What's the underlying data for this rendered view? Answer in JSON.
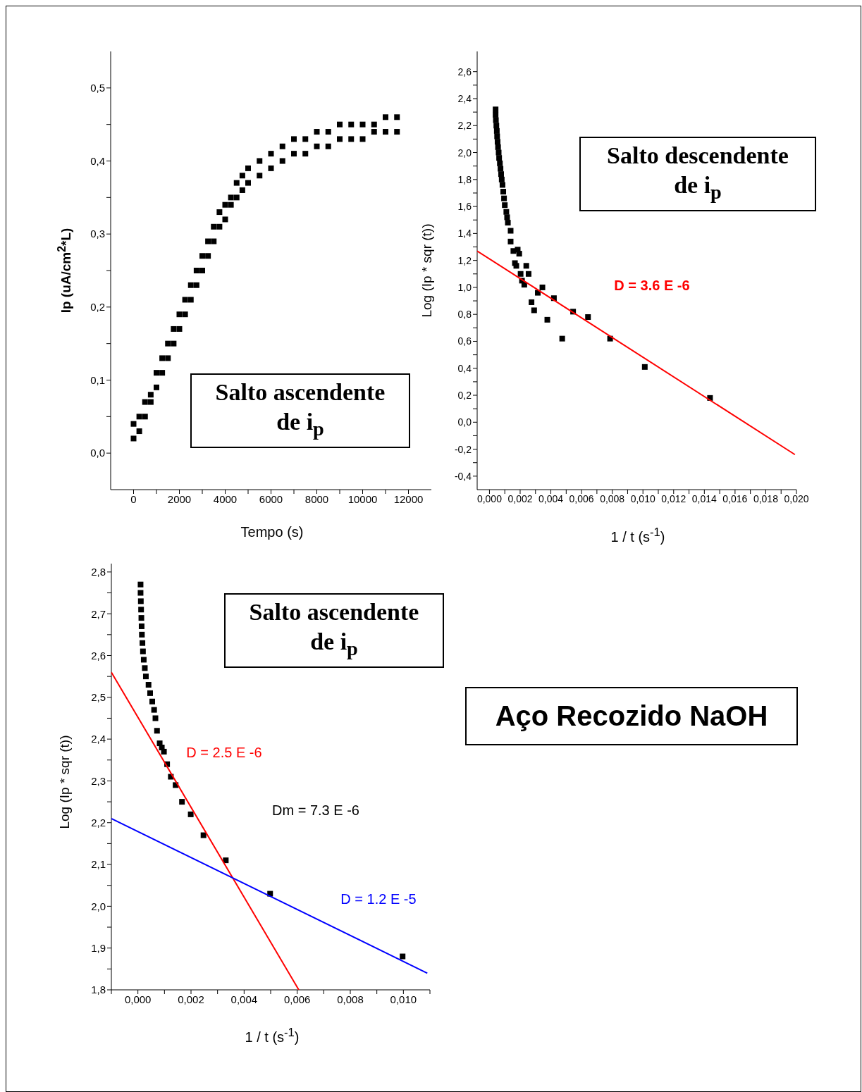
{
  "chart_data": [
    {
      "type": "scatter",
      "xlabel": "Tempo (s)",
      "ylabel": "Ip (uA/cm$^{2}$*L)",
      "marker": "square",
      "xlim": [
        -1000,
        13000
      ],
      "ylim": [
        -0.05,
        0.55
      ],
      "xticks": [
        0,
        {
          "value": 1000,
          "label": null
        },
        2000,
        {
          "value": 3000,
          "label": null
        },
        4000,
        {
          "value": 5000,
          "label": null
        },
        6000,
        {
          "value": 7000,
          "label": null
        },
        8000,
        {
          "value": 9000,
          "label": null
        },
        10000,
        {
          "value": 11000,
          "label": null
        },
        12000
      ],
      "yticks": [
        {
          "value": 0,
          "label": "0,0"
        },
        {
          "value": 0.05,
          "label": null
        },
        {
          "value": 0.1,
          "label": "0,1"
        },
        {
          "value": 0.15,
          "label": null
        },
        {
          "value": 0.2,
          "label": "0,2"
        },
        {
          "value": 0.25,
          "label": null
        },
        {
          "value": 0.3,
          "label": "0,3"
        },
        {
          "value": 0.35,
          "label": null
        },
        {
          "value": 0.4,
          "label": "0,4"
        },
        {
          "value": 0.45,
          "label": null
        },
        {
          "value": 0.5,
          "label": "0,5"
        }
      ],
      "annotations": [
        "Salto ascendente de i$_{p}$"
      ],
      "series": [
        {
          "type": "scatter",
          "color": "#000000",
          "x": [
            0,
            0,
            250,
            250,
            500,
            500,
            750,
            750,
            1000,
            1000,
            1250,
            1250,
            1500,
            1500,
            1750,
            1750,
            2000,
            2000,
            2250,
            2250,
            2500,
            2500,
            2750,
            2750,
            3000,
            3000,
            3250,
            3250,
            3500,
            3500,
            3750,
            3750,
            4000,
            4000,
            4250,
            4250,
            4500,
            4500,
            4750,
            4750,
            5000,
            5000,
            5500,
            5500,
            6000,
            6000,
            6500,
            6500,
            7000,
            7000,
            7500,
            7500,
            8000,
            8000,
            8500,
            8500,
            9000,
            9000,
            9500,
            9500,
            10000,
            10000,
            10500,
            10500,
            11000,
            11000,
            11500,
            11500
          ],
          "values": [
            0.02,
            0.04,
            0.03,
            0.05,
            0.05,
            0.07,
            0.07,
            0.08,
            0.09,
            0.11,
            0.11,
            0.13,
            0.13,
            0.15,
            0.15,
            0.17,
            0.17,
            0.19,
            0.19,
            0.21,
            0.21,
            0.23,
            0.23,
            0.25,
            0.25,
            0.27,
            0.27,
            0.29,
            0.29,
            0.31,
            0.31,
            0.33,
            0.32,
            0.34,
            0.34,
            0.35,
            0.35,
            0.37,
            0.36,
            0.38,
            0.37,
            0.39,
            0.38,
            0.4,
            0.39,
            0.41,
            0.4,
            0.42,
            0.41,
            0.43,
            0.41,
            0.43,
            0.42,
            0.44,
            0.42,
            0.44,
            0.43,
            0.45,
            0.43,
            0.45,
            0.43,
            0.45,
            0.44,
            0.45,
            0.44,
            0.46,
            0.44,
            0.46
          ]
        }
      ]
    },
    {
      "type": "scatter",
      "xlabel": "1 / t (s$^{-1}$)",
      "ylabel": "Log (Ip * sqr (t))",
      "marker": "square",
      "xlim": [
        -0.0008,
        0.02
      ],
      "ylim": [
        -0.5,
        2.75
      ],
      "xticks": [
        {
          "value": 0,
          "label": "0,000"
        },
        {
          "value": 0.001,
          "label": null
        },
        {
          "value": 0.002,
          "label": "0,002"
        },
        {
          "value": 0.003,
          "label": null
        },
        {
          "value": 0.004,
          "label": "0,004"
        },
        {
          "value": 0.005,
          "label": null
        },
        {
          "value": 0.006,
          "label": "0,006"
        },
        {
          "value": 0.007,
          "label": null
        },
        {
          "value": 0.008,
          "label": "0,008"
        },
        {
          "value": 0.009,
          "label": null
        },
        {
          "value": 0.01,
          "label": "0,010"
        },
        {
          "value": 0.011,
          "label": null
        },
        {
          "value": 0.012,
          "label": "0,012"
        },
        {
          "value": 0.013,
          "label": null
        },
        {
          "value": 0.014,
          "label": "0,014"
        },
        {
          "value": 0.015,
          "label": null
        },
        {
          "value": 0.016,
          "label": "0,016"
        },
        {
          "value": 0.017,
          "label": null
        },
        {
          "value": 0.018,
          "label": "0,018"
        },
        {
          "value": 0.019,
          "label": null
        },
        {
          "value": 0.02,
          "label": "0,020"
        }
      ],
      "yticks": [
        {
          "value": -0.4,
          "label": "-0,4"
        },
        {
          "value": -0.3,
          "label": null
        },
        {
          "value": -0.2,
          "label": "-0,2"
        },
        {
          "value": -0.1,
          "label": null
        },
        {
          "value": 0,
          "label": "0,0"
        },
        {
          "value": 0.1,
          "label": null
        },
        {
          "value": 0.2,
          "label": "0,2"
        },
        {
          "value": 0.3,
          "label": null
        },
        {
          "value": 0.4,
          "label": "0,4"
        },
        {
          "value": 0.5,
          "label": null
        },
        {
          "value": 0.6,
          "label": "0,6"
        },
        {
          "value": 0.7,
          "label": null
        },
        {
          "value": 0.8,
          "label": "0,8"
        },
        {
          "value": 0.9,
          "label": null
        },
        {
          "value": 1,
          "label": "1,0"
        },
        {
          "value": 1.1,
          "label": null
        },
        {
          "value": 1.2,
          "label": "1,2"
        },
        {
          "value": 1.3,
          "label": null
        },
        {
          "value": 1.4,
          "label": "1,4"
        },
        {
          "value": 1.5,
          "label": null
        },
        {
          "value": 1.6,
          "label": "1,6"
        },
        {
          "value": 1.7,
          "label": null
        },
        {
          "value": 1.8,
          "label": "1,8"
        },
        {
          "value": 1.9,
          "label": null
        },
        {
          "value": 2,
          "label": "2,0"
        },
        {
          "value": 2.1,
          "label": null
        },
        {
          "value": 2.2,
          "label": "2,2"
        },
        {
          "value": 2.3,
          "label": null
        },
        {
          "value": 2.4,
          "label": "2,4"
        },
        {
          "value": 2.5,
          "label": null
        },
        {
          "value": 2.6,
          "label": "2,6"
        }
      ],
      "annotations": [
        "Salto descendente de i$_{p}$"
      ],
      "series": [
        {
          "type": "scatter",
          "color": "#000000",
          "x": [
            0.0004,
            0.0004,
            0.00042,
            0.00045,
            0.00048,
            0.0005,
            0.00053,
            0.00056,
            0.0006,
            0.00063,
            0.00068,
            0.00072,
            0.00076,
            0.0008,
            0.00085,
            0.0009,
            0.00095,
            0.001,
            0.0011,
            0.00115,
            0.0012,
            0.00138,
            0.00138,
            0.00156,
            0.00184,
            0.00194,
            0.00166,
            0.00175,
            0.0024,
            0.00255,
            0.00203,
            0.00212,
            0.00227,
            0.00315,
            0.00345,
            0.00274,
            0.00291,
            0.0042,
            0.00377,
            0.00474,
            0.00545,
            0.00642,
            0.00786,
            0.01012,
            0.01437
          ],
          "values": [
            2.32,
            2.28,
            2.24,
            2.2,
            2.16,
            2.12,
            2.08,
            2.04,
            2.0,
            1.96,
            1.92,
            1.88,
            1.84,
            1.8,
            1.76,
            1.71,
            1.66,
            1.61,
            1.56,
            1.52,
            1.48,
            1.42,
            1.34,
            1.27,
            1.28,
            1.25,
            1.18,
            1.16,
            1.16,
            1.1,
            1.1,
            1.05,
            1.02,
            0.96,
            1.0,
            0.89,
            0.83,
            0.92,
            0.76,
            0.62,
            0.82,
            0.78,
            0.62,
            0.41,
            0.18
          ]
        },
        {
          "type": "line",
          "name": "D = 3.6 E -6",
          "color": "#ff0000",
          "marker": "none",
          "x": [
            -0.0008,
            0.0199
          ],
          "values": [
            1.27,
            -0.24
          ]
        }
      ]
    },
    {
      "type": "scatter",
      "xlabel": "1 / t (s$^{-1}$)",
      "ylabel": "Log (Ip * sqr (t))",
      "marker": "square",
      "xlim": [
        -0.001,
        0.011
      ],
      "ylim": [
        1.8,
        2.82
      ],
      "xticks": [
        {
          "value": -0.001,
          "label": null
        },
        {
          "value": 0,
          "label": "0,000"
        },
        {
          "value": 0.001,
          "label": null
        },
        {
          "value": 0.002,
          "label": "0,002"
        },
        {
          "value": 0.003,
          "label": null
        },
        {
          "value": 0.004,
          "label": "0,004"
        },
        {
          "value": 0.005,
          "label": null
        },
        {
          "value": 0.006,
          "label": "0,006"
        },
        {
          "value": 0.007,
          "label": null
        },
        {
          "value": 0.008,
          "label": "0,008"
        },
        {
          "value": 0.009,
          "label": null
        },
        {
          "value": 0.01,
          "label": "0,010"
        },
        {
          "value": 0.011,
          "label": null
        }
      ],
      "yticks": [
        {
          "value": 1.8,
          "label": "1,8"
        },
        {
          "value": 1.85,
          "label": null
        },
        {
          "value": 1.9,
          "label": "1,9"
        },
        {
          "value": 1.95,
          "label": null
        },
        {
          "value": 2,
          "label": "2,0"
        },
        {
          "value": 2.05,
          "label": null
        },
        {
          "value": 2.1,
          "label": "2,1"
        },
        {
          "value": 2.15,
          "label": null
        },
        {
          "value": 2.2,
          "label": "2,2"
        },
        {
          "value": 2.25,
          "label": null
        },
        {
          "value": 2.3,
          "label": "2,3"
        },
        {
          "value": 2.35,
          "label": null
        },
        {
          "value": 2.4,
          "label": "2,4"
        },
        {
          "value": 2.45,
          "label": null
        },
        {
          "value": 2.5,
          "label": "2,5"
        },
        {
          "value": 2.55,
          "label": null
        },
        {
          "value": 2.6,
          "label": "2,6"
        },
        {
          "value": 2.65,
          "label": null
        },
        {
          "value": 2.7,
          "label": "2,7"
        },
        {
          "value": 2.75,
          "label": null
        },
        {
          "value": 2.8,
          "label": "2,8"
        }
      ],
      "annotations": [
        "Salto ascendente de i$_{p}$",
        "Dm = 7.3 E -6"
      ],
      "series": [
        {
          "type": "scatter",
          "color": "#000000",
          "x": [
            0.0001,
            0.0001,
            0.00011,
            0.00012,
            0.00013,
            0.00014,
            0.00015,
            0.00017,
            0.00019,
            0.00022,
            0.00026,
            0.0003,
            0.0004,
            0.00046,
            0.00054,
            0.00061,
            0.00066,
            0.00072,
            0.00082,
            0.0009,
            0.00098,
            0.0011,
            0.00124,
            0.00142,
            0.00166,
            0.00199,
            0.00247,
            0.00331,
            0.00498,
            0.00997
          ],
          "values": [
            2.77,
            2.75,
            2.73,
            2.71,
            2.69,
            2.67,
            2.65,
            2.63,
            2.61,
            2.59,
            2.57,
            2.55,
            2.53,
            2.51,
            2.49,
            2.47,
            2.45,
            2.42,
            2.39,
            2.38,
            2.37,
            2.34,
            2.31,
            2.29,
            2.25,
            2.22,
            2.17,
            2.11,
            2.03,
            1.88
          ]
        },
        {
          "type": "line",
          "name": "D = 2.5 E -6",
          "color": "#ff0000",
          "marker": "none",
          "x": [
            -0.001,
            0.00606
          ],
          "values": [
            2.56,
            1.8
          ]
        },
        {
          "type": "line",
          "name": "D = 1.2 E -5",
          "color": "#0000ff",
          "marker": "none",
          "x": [
            -0.001,
            0.0109
          ],
          "values": [
            2.21,
            1.84
          ]
        }
      ]
    },
    {
      "type": "other",
      "title": "Aço Recozido NaOH"
    }
  ]
}
